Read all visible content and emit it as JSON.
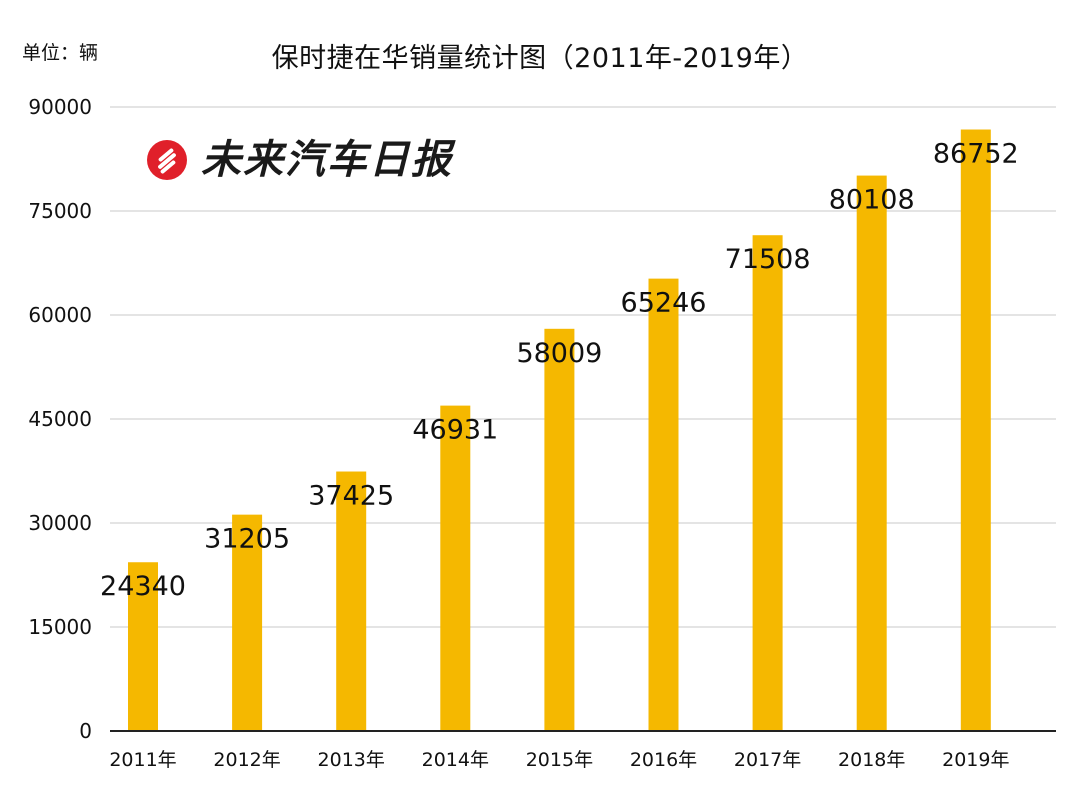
{
  "unit_label": "单位：辆",
  "logo_text": "未来汽车日报",
  "colors": {
    "bar": "#F5B800",
    "grid": "#C8C8C8",
    "axis": "#222222",
    "logo_red": "#E0202A"
  },
  "chart_data": {
    "type": "bar",
    "title": "保时捷在华销量统计图（2011年-2019年）",
    "xlabel": "",
    "ylabel": "",
    "categories": [
      "2011年",
      "2012年",
      "2013年",
      "2014年",
      "2015年",
      "2016年",
      "2017年",
      "2018年",
      "2019年"
    ],
    "values": [
      24340,
      31205,
      37425,
      46931,
      58009,
      65246,
      71508,
      80108,
      86752
    ],
    "ylim": [
      0,
      90000
    ],
    "yticks": [
      0,
      15000,
      30000,
      45000,
      60000,
      75000,
      90000
    ],
    "grid": true,
    "legend": "none"
  }
}
